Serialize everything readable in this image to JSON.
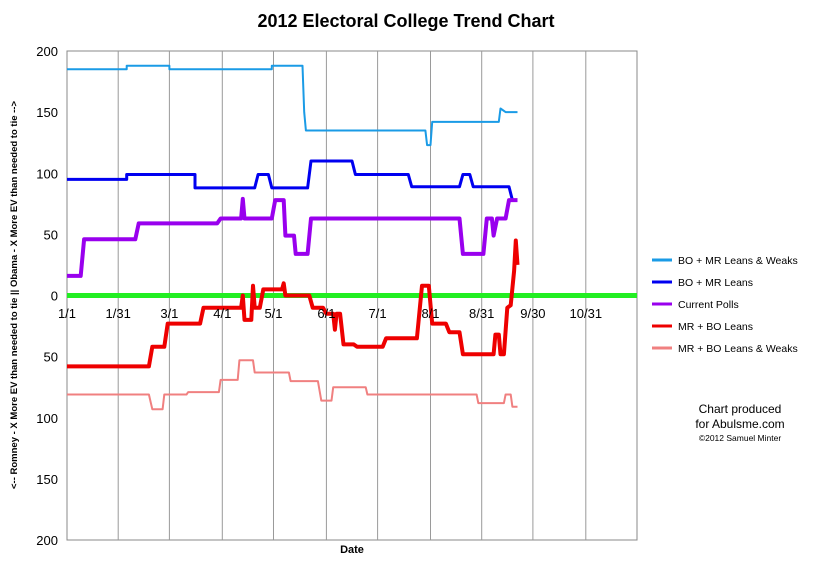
{
  "chart_data": {
    "type": "line",
    "title": "2012 Electoral College Trend Chart",
    "xlabel": "Date",
    "ylabel": "<-- Romney - X More EV than needed to tie || Obama - X More EV than needed to tie -->",
    "x_ticks": [
      "1/1",
      "1/31",
      "3/1",
      "4/1",
      "5/1",
      "6/1",
      "7/1",
      "8/1",
      "8/31",
      "9/30",
      "10/31"
    ],
    "x_tick_days": [
      0,
      30,
      60,
      91,
      121,
      152,
      182,
      213,
      243,
      273,
      304
    ],
    "x_range_days": [
      0,
      334
    ],
    "y_tick_labels": [
      "200",
      "150",
      "100",
      "50",
      "0",
      "50",
      "100",
      "150",
      "200"
    ],
    "y_tick_values": [
      200,
      150,
      100,
      50,
      0,
      -50,
      -100,
      -150,
      -200
    ],
    "ylim": [
      -200,
      200
    ],
    "grid": "vertical",
    "legend_position": "right",
    "annotation": {
      "line1": "Chart produced",
      "line2": "for Abulsme.com",
      "line3": "©2012 Samuel Minter"
    },
    "series": [
      {
        "name": "BO + MR Leans & Weaks",
        "color": "#1a9be6",
        "width": 2,
        "points": [
          [
            0,
            185
          ],
          [
            35,
            185
          ],
          [
            35,
            188
          ],
          [
            60,
            188
          ],
          [
            60,
            185
          ],
          [
            120,
            185
          ],
          [
            120,
            188
          ],
          [
            138,
            188
          ],
          [
            139,
            150
          ],
          [
            140,
            135
          ],
          [
            210,
            135
          ],
          [
            211,
            123
          ],
          [
            213,
            123
          ],
          [
            214,
            142
          ],
          [
            253,
            142
          ],
          [
            254,
            153
          ],
          [
            257,
            150
          ],
          [
            264,
            150
          ]
        ]
      },
      {
        "name": "BO + MR Leans",
        "color": "#0000f0",
        "width": 3,
        "points": [
          [
            0,
            95
          ],
          [
            35,
            95
          ],
          [
            35,
            99
          ],
          [
            75,
            99
          ],
          [
            75,
            88
          ],
          [
            110,
            88
          ],
          [
            112,
            99
          ],
          [
            118,
            99
          ],
          [
            120,
            88
          ],
          [
            141,
            88
          ],
          [
            143,
            110
          ],
          [
            167,
            110
          ],
          [
            169,
            99
          ],
          [
            200,
            99
          ],
          [
            202,
            89
          ],
          [
            230,
            89
          ],
          [
            232,
            99
          ],
          [
            236,
            99
          ],
          [
            238,
            89
          ],
          [
            259,
            89
          ],
          [
            261,
            78
          ],
          [
            264,
            78
          ]
        ]
      },
      {
        "name": "Current Polls",
        "color": "#9900ee",
        "width": 4,
        "points": [
          [
            0,
            16
          ],
          [
            8,
            16
          ],
          [
            10,
            46
          ],
          [
            40,
            46
          ],
          [
            42,
            59
          ],
          [
            88,
            59
          ],
          [
            90,
            63
          ],
          [
            102,
            63
          ],
          [
            103,
            79
          ],
          [
            104,
            63
          ],
          [
            120,
            63
          ],
          [
            122,
            78
          ],
          [
            127,
            78
          ],
          [
            128,
            49
          ],
          [
            133,
            49
          ],
          [
            134,
            34
          ],
          [
            141,
            34
          ],
          [
            143,
            63
          ],
          [
            230,
            63
          ],
          [
            232,
            34
          ],
          [
            244,
            34
          ],
          [
            246,
            63
          ],
          [
            249,
            63
          ],
          [
            250,
            49
          ],
          [
            252,
            63
          ],
          [
            257,
            63
          ],
          [
            259,
            78
          ],
          [
            264,
            78
          ]
        ]
      },
      {
        "name": "MR + BO Leans",
        "color": "#ee0000",
        "width": 4,
        "points": [
          [
            0,
            -58
          ],
          [
            48,
            -58
          ],
          [
            50,
            -42
          ],
          [
            57,
            -42
          ],
          [
            59,
            -23
          ],
          [
            78,
            -23
          ],
          [
            80,
            -10
          ],
          [
            102,
            -10
          ],
          [
            103,
            0
          ],
          [
            104,
            -20
          ],
          [
            108,
            -20
          ],
          [
            109,
            8
          ],
          [
            110,
            -10
          ],
          [
            113,
            -10
          ],
          [
            115,
            5
          ],
          [
            126,
            5
          ],
          [
            127,
            10
          ],
          [
            128,
            0
          ],
          [
            142,
            0
          ],
          [
            144,
            -10
          ],
          [
            150,
            -10
          ],
          [
            152,
            -15
          ],
          [
            156,
            -15
          ],
          [
            157,
            -28
          ],
          [
            158,
            -15
          ],
          [
            160,
            -15
          ],
          [
            162,
            -40
          ],
          [
            168,
            -40
          ],
          [
            170,
            -42
          ],
          [
            185,
            -42
          ],
          [
            187,
            -35
          ],
          [
            205,
            -35
          ],
          [
            208,
            8
          ],
          [
            212,
            8
          ],
          [
            214,
            -23
          ],
          [
            222,
            -23
          ],
          [
            224,
            -30
          ],
          [
            230,
            -30
          ],
          [
            232,
            -48
          ],
          [
            250,
            -48
          ],
          [
            251,
            -32
          ],
          [
            253,
            -32
          ],
          [
            254,
            -48
          ],
          [
            256,
            -48
          ],
          [
            258,
            -10
          ],
          [
            260,
            -8
          ],
          [
            262,
            20
          ],
          [
            263,
            45
          ],
          [
            264,
            25
          ]
        ]
      },
      {
        "name": "MR + BO Leans & Weaks",
        "color": "#f08080",
        "width": 2,
        "points": [
          [
            0,
            -81
          ],
          [
            48,
            -81
          ],
          [
            50,
            -93
          ],
          [
            56,
            -93
          ],
          [
            57,
            -81
          ],
          [
            70,
            -81
          ],
          [
            71,
            -79
          ],
          [
            89,
            -79
          ],
          [
            90,
            -69
          ],
          [
            100,
            -69
          ],
          [
            101,
            -53
          ],
          [
            109,
            -53
          ],
          [
            110,
            -63
          ],
          [
            130,
            -63
          ],
          [
            131,
            -70
          ],
          [
            147,
            -70
          ],
          [
            149,
            -86
          ],
          [
            155,
            -86
          ],
          [
            156,
            -75
          ],
          [
            175,
            -75
          ],
          [
            176,
            -81
          ],
          [
            240,
            -81
          ],
          [
            241,
            -88
          ],
          [
            256,
            -88
          ],
          [
            257,
            -81
          ],
          [
            260,
            -81
          ],
          [
            261,
            -91
          ],
          [
            264,
            -91
          ]
        ]
      },
      {
        "name": "",
        "color": "#22ee22",
        "width": 5,
        "points": [
          [
            0,
            0
          ],
          [
            334,
            0
          ]
        ]
      }
    ]
  }
}
